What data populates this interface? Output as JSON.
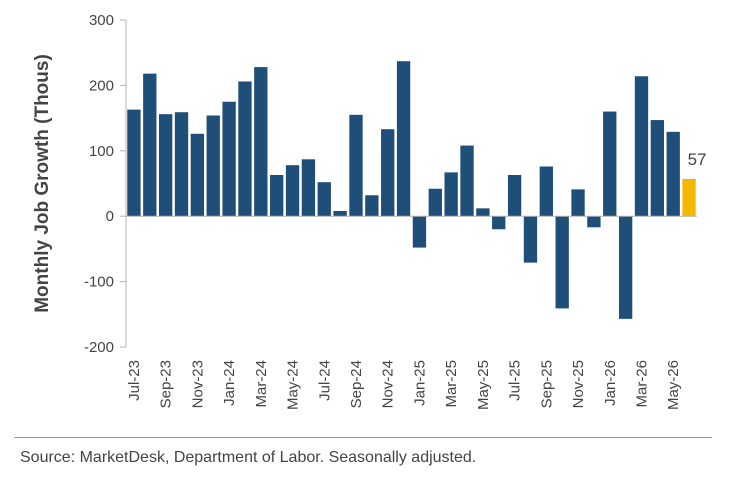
{
  "chart_data": {
    "type": "bar",
    "ylabel": "Monthly Job Growth (Thous)",
    "xlabel": "",
    "ylim": [
      -200,
      300
    ],
    "yticks": [
      -200,
      -100,
      0,
      100,
      200,
      300
    ],
    "categories": [
      "Jul-23",
      "Aug-23",
      "Sep-23",
      "Oct-23",
      "Nov-23",
      "Dec-23",
      "Jan-24",
      "Feb-24",
      "Mar-24",
      "Apr-24",
      "May-24",
      "Jun-24",
      "Jul-24",
      "Aug-24",
      "Sep-24",
      "Oct-24",
      "Nov-24",
      "Dec-24",
      "Jan-25",
      "Feb-25",
      "Mar-25",
      "Apr-25",
      "May-25",
      "Jun-25",
      "Jul-25",
      "Aug-25",
      "Sep-25",
      "Oct-25",
      "Nov-25",
      "Dec-25",
      "Jan-26",
      "Feb-26",
      "Mar-26",
      "Apr-26",
      "May-26",
      "Jun-26"
    ],
    "x_tick_labels": [
      "Jul-23",
      "Sep-23",
      "Nov-23",
      "Jan-24",
      "Mar-24",
      "May-24",
      "Jul-24",
      "Sep-24",
      "Nov-24",
      "Jan-25",
      "Mar-25",
      "May-25",
      "Jul-25",
      "Sep-25",
      "Nov-25",
      "Jan-26",
      "Mar-26",
      "May-26"
    ],
    "values": [
      163,
      218,
      156,
      159,
      126,
      154,
      175,
      206,
      228,
      63,
      78,
      87,
      52,
      8,
      155,
      32,
      133,
      237,
      -48,
      42,
      67,
      108,
      12,
      -20,
      63,
      -71,
      76,
      -141,
      41,
      -17,
      160,
      -157,
      214,
      147,
      129,
      57
    ],
    "highlight_index": 35,
    "colors": {
      "bar": "#1f4e79",
      "highlight": "#f5b800",
      "axis": "#b3b3b3"
    },
    "data_labels": [
      {
        "index": 35,
        "text": "57"
      }
    ],
    "grid": false,
    "legend": "none"
  },
  "footer": {
    "source": "Source: MarketDesk, Department of Labor. Seasonally adjusted."
  }
}
